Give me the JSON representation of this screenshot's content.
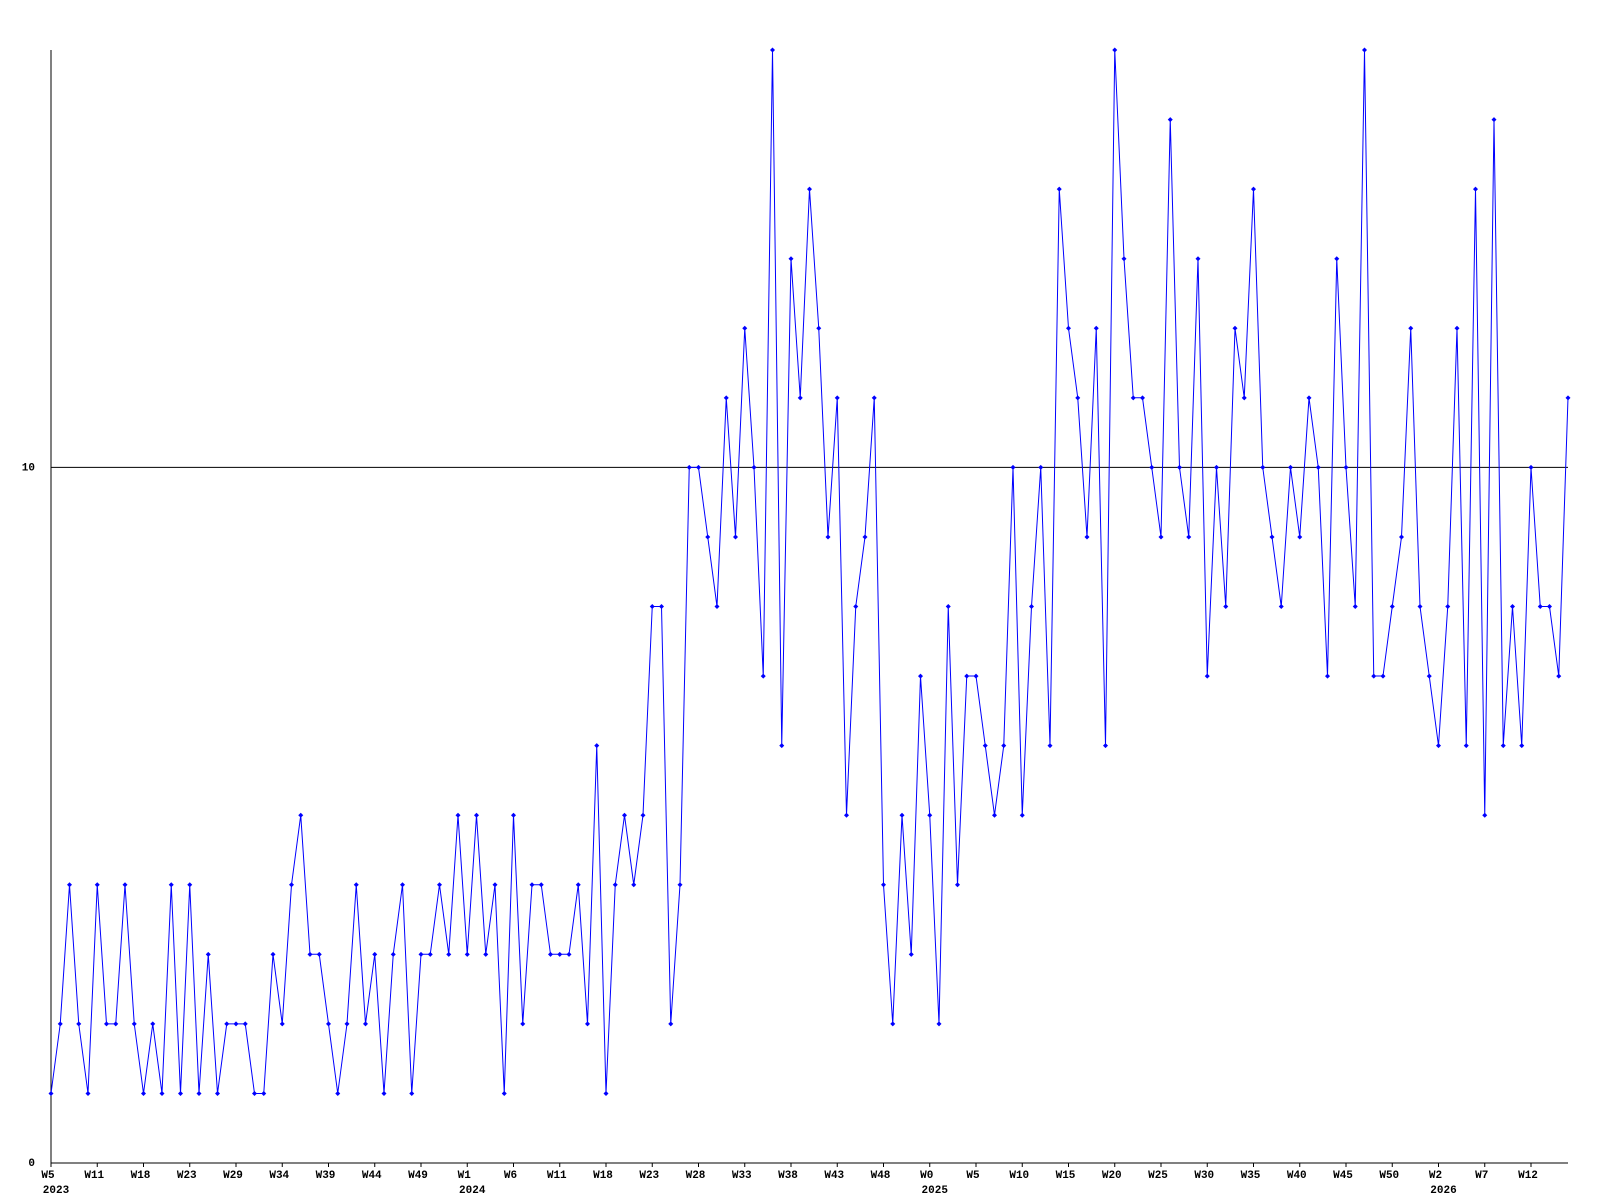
{
  "chart_data": {
    "type": "line",
    "categories": [
      "W5",
      null,
      null,
      null,
      null,
      "W11",
      null,
      null,
      null,
      null,
      "W18",
      null,
      null,
      null,
      null,
      "W23",
      null,
      null,
      null,
      null,
      "W29",
      null,
      null,
      null,
      null,
      "W34",
      null,
      null,
      null,
      null,
      "W39",
      null,
      null,
      null,
      null,
      "W44",
      null,
      null,
      null,
      null,
      "W49",
      null,
      null,
      null,
      null,
      "W1",
      null,
      null,
      null,
      null,
      "W6",
      null,
      null,
      null,
      null,
      "W11",
      null,
      null,
      null,
      null,
      "W18",
      null,
      null,
      null,
      null,
      "W23",
      null,
      null,
      null,
      null,
      "W28",
      null,
      null,
      null,
      null,
      "W33",
      null,
      null,
      null,
      null,
      "W38",
      null,
      null,
      null,
      null,
      "W43",
      null,
      null,
      null,
      null,
      "W48",
      null,
      null,
      null,
      null,
      "W0",
      null,
      null,
      null,
      null,
      "W5",
      null,
      null,
      null,
      null,
      "W10",
      null,
      null,
      null,
      null,
      "W15",
      null,
      null,
      null,
      null,
      "W20",
      null,
      null,
      null,
      null,
      "W25",
      null,
      null,
      null,
      null,
      "W30",
      null,
      null,
      null,
      null,
      "W35",
      null,
      null,
      null,
      null,
      "W40",
      null,
      null,
      null,
      null,
      "W45",
      null,
      null,
      null,
      null,
      "W50",
      null,
      null,
      null,
      null,
      "W2",
      null,
      null,
      null,
      null,
      "W7",
      null,
      null,
      null,
      null,
      "W12",
      null,
      null,
      null,
      null
    ],
    "category_years": [
      "2023",
      null,
      null,
      null,
      null,
      null,
      null,
      null,
      null,
      null,
      null,
      null,
      null,
      null,
      null,
      null,
      null,
      null,
      null,
      null,
      null,
      null,
      null,
      null,
      null,
      null,
      null,
      null,
      null,
      null,
      null,
      null,
      null,
      null,
      null,
      null,
      null,
      null,
      null,
      null,
      null,
      null,
      null,
      null,
      null,
      "2024",
      null,
      null,
      null,
      null,
      null,
      null,
      null,
      null,
      null,
      null,
      null,
      null,
      null,
      null,
      null,
      null,
      null,
      null,
      null,
      null,
      null,
      null,
      null,
      null,
      null,
      null,
      null,
      null,
      null,
      null,
      null,
      null,
      null,
      null,
      null,
      null,
      null,
      null,
      null,
      null,
      null,
      null,
      null,
      null,
      null,
      null,
      null,
      null,
      null,
      "2025",
      null,
      null,
      null,
      null,
      null,
      null,
      null,
      null,
      null,
      null,
      null,
      null,
      null,
      null,
      null,
      null,
      null,
      null,
      null,
      null,
      null,
      null,
      null,
      null,
      null,
      null,
      null,
      null,
      null,
      null,
      null,
      null,
      null,
      null,
      null,
      null,
      null,
      null,
      null,
      null,
      null,
      null,
      null,
      null,
      null,
      null,
      null,
      null,
      null,
      null,
      null,
      null,
      null,
      null,
      "2026",
      null,
      null,
      null,
      null,
      null,
      null,
      null,
      null,
      null,
      null,
      null,
      null,
      null,
      null
    ],
    "series": [
      {
        "color": "#0000ff",
        "values": [
          1,
          2,
          4,
          2,
          1,
          4,
          2,
          2,
          4,
          2,
          1,
          2,
          1,
          4,
          1,
          4,
          1,
          3,
          1,
          2,
          2,
          2,
          1,
          1,
          3,
          2,
          4,
          5,
          3,
          3,
          2,
          1,
          2,
          4,
          2,
          3,
          1,
          3,
          4,
          1,
          3,
          3,
          4,
          3,
          5,
          3,
          5,
          3,
          4,
          1,
          5,
          2,
          4,
          4,
          3,
          3,
          3,
          4,
          2,
          6,
          1,
          4,
          5,
          4,
          5,
          8,
          8,
          2,
          4,
          10,
          10,
          9,
          8,
          11,
          9,
          12,
          10,
          7,
          16,
          6,
          13,
          11,
          14,
          12,
          9,
          11,
          5,
          8,
          9,
          11,
          4,
          2,
          5,
          3,
          7,
          5,
          2,
          8,
          4,
          7,
          7,
          6,
          5,
          6,
          10,
          5,
          8,
          10,
          6,
          14,
          12,
          11,
          9,
          12,
          6,
          16,
          13,
          11,
          11,
          10,
          9,
          15,
          10,
          9,
          13,
          7,
          10,
          8,
          12,
          11,
          14,
          10,
          9,
          8,
          10,
          9,
          11,
          10,
          7,
          13,
          10,
          8,
          16,
          7,
          7,
          8,
          9,
          12,
          8,
          7,
          6,
          8,
          12,
          6,
          14,
          5,
          15,
          6,
          8,
          6,
          10,
          8,
          8,
          7,
          11
        ]
      }
    ],
    "ylim": [
      0,
      16
    ],
    "yticks": [
      0,
      10
    ],
    "grid": true
  }
}
